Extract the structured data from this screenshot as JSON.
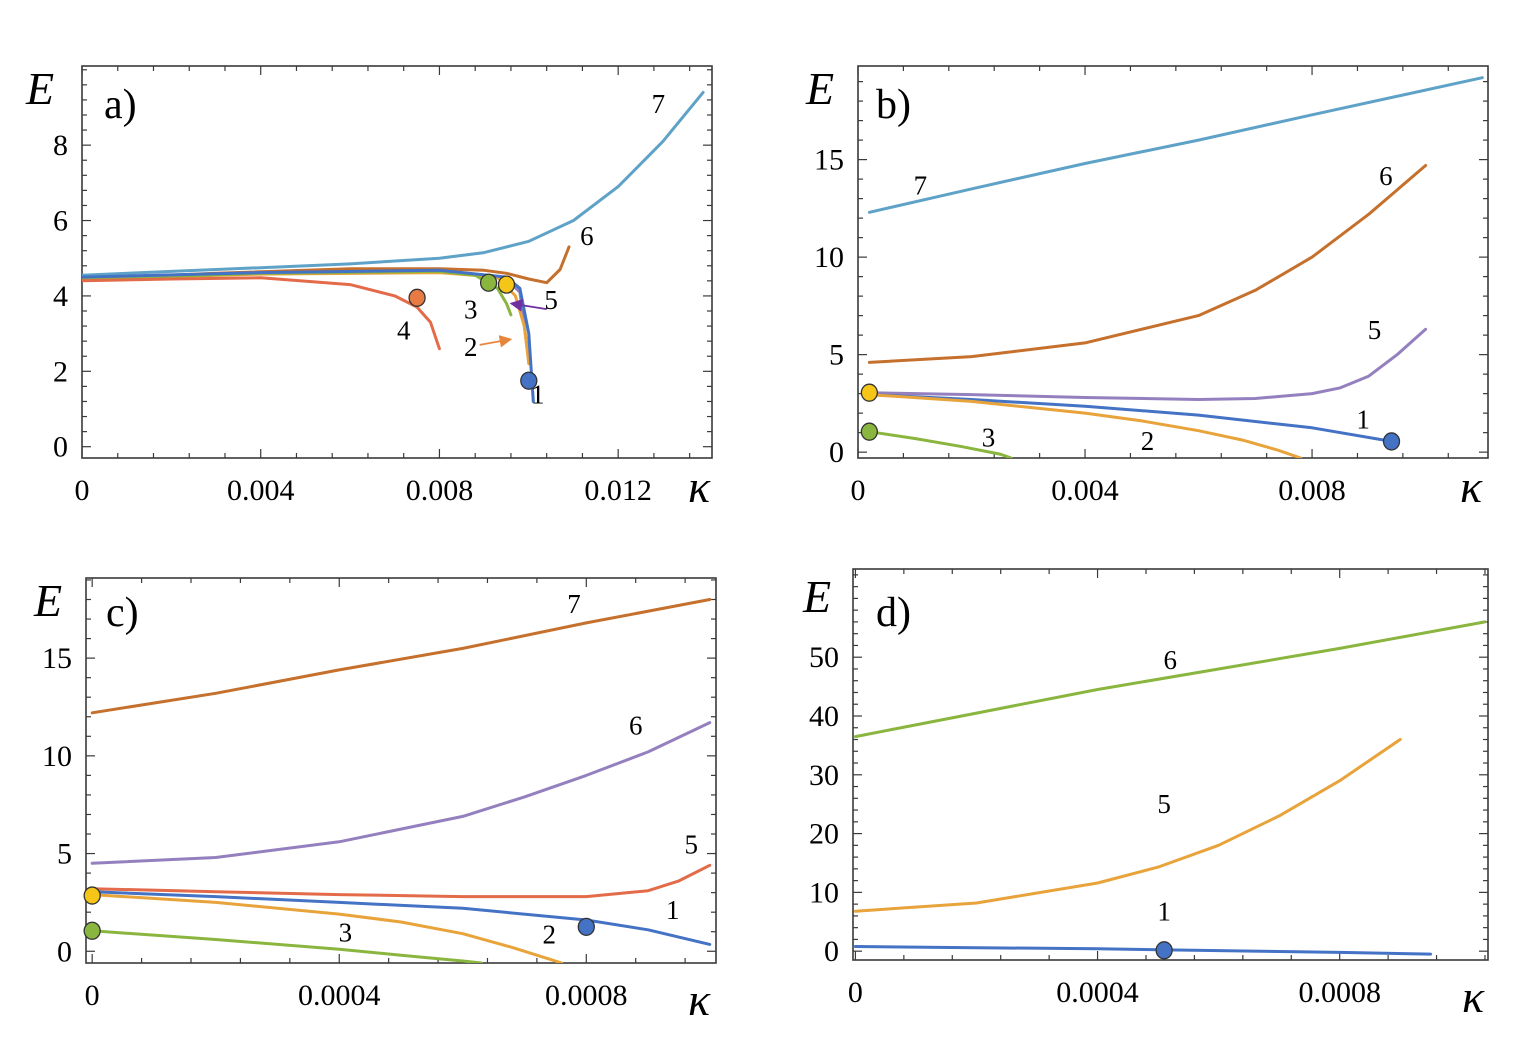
{
  "colors": {
    "blue": "#4472c4",
    "lightblue": "#5fa2c8",
    "orange": "#e8a33a",
    "green": "#8ab53f",
    "purple": "#9480bf",
    "brown": "#c5702c",
    "red": "#e36b4a",
    "yellow": "#f5c518",
    "orange_marker": "#e87b44"
  },
  "chart_data": [
    {
      "type": "line",
      "panel": "a)",
      "xlabel": "κ",
      "ylabel": "E",
      "xlim": [
        0,
        0.0141
      ],
      "ylim": [
        -0.3,
        10.1
      ],
      "x_ticks": [
        {
          "v": 0,
          "label": "0"
        },
        {
          "v": 0.004,
          "label": "0.004"
        },
        {
          "v": 0.008,
          "label": "0.008"
        },
        {
          "v": 0.012,
          "label": "0.012"
        }
      ],
      "y_ticks": [
        {
          "v": 0,
          "label": "0"
        },
        {
          "v": 2,
          "label": "2"
        },
        {
          "v": 4,
          "label": "4"
        },
        {
          "v": 6,
          "label": "6"
        },
        {
          "v": 8,
          "label": "8"
        }
      ],
      "series": [
        {
          "name": "7",
          "color": "lightblue",
          "x": [
            0,
            0.002,
            0.004,
            0.006,
            0.008,
            0.009,
            0.01,
            0.011,
            0.012,
            0.013,
            0.0139
          ],
          "y": [
            4.55,
            4.65,
            4.75,
            4.85,
            5.0,
            5.15,
            5.45,
            6.0,
            6.9,
            8.1,
            9.4
          ]
        },
        {
          "name": "6",
          "color": "brown",
          "x": [
            0,
            0.003,
            0.006,
            0.008,
            0.009,
            0.0095,
            0.01,
            0.0104,
            0.0107,
            0.0109
          ],
          "y": [
            4.45,
            4.6,
            4.72,
            4.72,
            4.68,
            4.6,
            4.45,
            4.35,
            4.7,
            5.3
          ]
        },
        {
          "name": "5",
          "color": "purple",
          "x": [
            0,
            0.004,
            0.008,
            0.0095,
            0.0098,
            0.0099,
            0.01
          ],
          "y": [
            4.48,
            4.6,
            4.68,
            4.45,
            4.1,
            3.2,
            2.3
          ]
        },
        {
          "name": "2",
          "color": "orange",
          "x": [
            0,
            0.004,
            0.008,
            0.0093,
            0.0097,
            0.0099,
            0.01
          ],
          "y": [
            4.45,
            4.58,
            4.62,
            4.5,
            4.0,
            3.2,
            2.2
          ]
        },
        {
          "name": "3",
          "color": "green",
          "x": [
            0,
            0.004,
            0.008,
            0.0088,
            0.0093,
            0.0095,
            0.0096
          ],
          "y": [
            4.45,
            4.6,
            4.65,
            4.55,
            4.2,
            3.8,
            3.5
          ]
        },
        {
          "name": "4",
          "color": "red",
          "x": [
            0,
            0.002,
            0.004,
            0.006,
            0.007,
            0.0075,
            0.0078,
            0.008
          ],
          "y": [
            4.4,
            4.45,
            4.48,
            4.3,
            4.0,
            3.7,
            3.3,
            2.6
          ]
        },
        {
          "name": "1",
          "color": "blue",
          "x": [
            0,
            0.004,
            0.008,
            0.0095,
            0.0098,
            0.01,
            0.0101
          ],
          "y": [
            4.5,
            4.62,
            4.68,
            4.5,
            4.2,
            3.0,
            1.2
          ]
        }
      ],
      "markers": [
        {
          "x": 0.0075,
          "y": 3.95,
          "color": "orange_marker"
        },
        {
          "x": 0.0091,
          "y": 4.35,
          "color": "green"
        },
        {
          "x": 0.0095,
          "y": 4.3,
          "color": "yellow"
        },
        {
          "x": 0.01,
          "y": 1.75,
          "color": "blue"
        }
      ],
      "labels": [
        {
          "text": "7",
          "x": 0.0129,
          "y": 8.85
        },
        {
          "text": "6",
          "x": 0.0113,
          "y": 5.35
        },
        {
          "text": "5",
          "x": 0.0105,
          "y": 3.65
        },
        {
          "text": "3",
          "x": 0.0087,
          "y": 3.4
        },
        {
          "text": "4",
          "x": 0.0072,
          "y": 2.85
        },
        {
          "text": "2",
          "x": 0.0087,
          "y": 2.4
        },
        {
          "text": "1",
          "x": 0.0102,
          "y": 1.15
        }
      ],
      "arrows": [
        {
          "x1": 0.0104,
          "y1": 3.65,
          "x2": 0.0096,
          "y2": 3.8,
          "color": "#7030a0"
        },
        {
          "x1": 0.0089,
          "y1": 2.7,
          "x2": 0.0096,
          "y2": 2.85,
          "color": "#e8853c"
        }
      ]
    },
    {
      "type": "line",
      "panel": "b)",
      "xlabel": "κ",
      "ylabel": "E",
      "xlim": [
        0,
        0.0111
      ],
      "ylim": [
        -0.3,
        19.8
      ],
      "x_ticks": [
        {
          "v": 0,
          "label": "0"
        },
        {
          "v": 0.004,
          "label": "0.004"
        },
        {
          "v": 0.008,
          "label": "0.008"
        }
      ],
      "y_ticks": [
        {
          "v": 0,
          "label": "0"
        },
        {
          "v": 5,
          "label": "5"
        },
        {
          "v": 10,
          "label": "10"
        },
        {
          "v": 15,
          "label": "15"
        }
      ],
      "series": [
        {
          "name": "7",
          "color": "lightblue",
          "x": [
            0.0002,
            0.002,
            0.004,
            0.006,
            0.008,
            0.011
          ],
          "y": [
            12.3,
            13.5,
            14.8,
            16.0,
            17.3,
            19.2
          ]
        },
        {
          "name": "6",
          "color": "brown",
          "x": [
            0.0002,
            0.002,
            0.004,
            0.006,
            0.007,
            0.008,
            0.009,
            0.01
          ],
          "y": [
            4.6,
            4.9,
            5.6,
            7.0,
            8.3,
            10.0,
            12.2,
            14.7
          ]
        },
        {
          "name": "5",
          "color": "purple",
          "x": [
            0.0002,
            0.002,
            0.004,
            0.006,
            0.007,
            0.008,
            0.0085,
            0.009,
            0.0095,
            0.01
          ],
          "y": [
            3.05,
            2.95,
            2.8,
            2.7,
            2.75,
            3.0,
            3.3,
            3.9,
            5.0,
            6.3
          ]
        },
        {
          "name": "1",
          "color": "blue",
          "x": [
            0.0002,
            0.002,
            0.004,
            0.006,
            0.008,
            0.0094
          ],
          "y": [
            2.95,
            2.7,
            2.35,
            1.9,
            1.25,
            0.55
          ]
        },
        {
          "name": "2",
          "color": "orange",
          "x": [
            0.0002,
            0.002,
            0.004,
            0.005,
            0.006,
            0.0068,
            0.0074,
            0.0078
          ],
          "y": [
            2.95,
            2.6,
            2.0,
            1.6,
            1.1,
            0.6,
            0.1,
            -0.3
          ]
        },
        {
          "name": "3",
          "color": "green",
          "x": [
            0.0002,
            0.001,
            0.0018,
            0.0025,
            0.0027
          ],
          "y": [
            1.05,
            0.7,
            0.3,
            -0.1,
            -0.3
          ]
        }
      ],
      "markers": [
        {
          "x": 0.0002,
          "y": 3.05,
          "color": "yellow"
        },
        {
          "x": 0.0002,
          "y": 1.05,
          "color": "green"
        },
        {
          "x": 0.0094,
          "y": 0.55,
          "color": "blue"
        }
      ],
      "labels": [
        {
          "text": "7",
          "x": 0.0011,
          "y": 13.2
        },
        {
          "text": "6",
          "x": 0.0093,
          "y": 13.7
        },
        {
          "text": "5",
          "x": 0.0091,
          "y": 5.8
        },
        {
          "text": "1",
          "x": 0.0089,
          "y": 1.2
        },
        {
          "text": "2",
          "x": 0.0051,
          "y": 0.1
        },
        {
          "text": "3",
          "x": 0.0023,
          "y": 0.3
        }
      ],
      "arrows": []
    },
    {
      "type": "line",
      "panel": "c)",
      "xlabel": "κ",
      "ylabel": "E",
      "xlim": [
        -1e-05,
        0.00101
      ],
      "ylim": [
        -0.6,
        19.1
      ],
      "x_ticks": [
        {
          "v": 0,
          "label": "0"
        },
        {
          "v": 0.0004,
          "label": "0.0004"
        },
        {
          "v": 0.0008,
          "label": "0.0008"
        }
      ],
      "y_ticks": [
        {
          "v": 0,
          "label": "0"
        },
        {
          "v": 5,
          "label": "5"
        },
        {
          "v": 10,
          "label": "10"
        },
        {
          "v": 15,
          "label": "15"
        }
      ],
      "series": [
        {
          "name": "7",
          "color": "brown",
          "x": [
            0,
            0.0002,
            0.0004,
            0.0006,
            0.0008,
            0.001
          ],
          "y": [
            12.2,
            13.2,
            14.4,
            15.5,
            16.8,
            18.0
          ]
        },
        {
          "name": "6",
          "color": "purple",
          "x": [
            0,
            0.0002,
            0.0004,
            0.0006,
            0.0007,
            0.0008,
            0.0009,
            0.001
          ],
          "y": [
            4.5,
            4.8,
            5.6,
            6.9,
            7.9,
            9.0,
            10.2,
            11.7
          ]
        },
        {
          "name": "5",
          "color": "red",
          "x": [
            0,
            0.0002,
            0.0004,
            0.0006,
            0.0008,
            0.0009,
            0.00095,
            0.001
          ],
          "y": [
            3.2,
            3.05,
            2.9,
            2.8,
            2.8,
            3.1,
            3.6,
            4.4
          ]
        },
        {
          "name": "1",
          "color": "blue",
          "x": [
            0,
            0.0002,
            0.0004,
            0.0006,
            0.0008,
            0.0009,
            0.001
          ],
          "y": [
            3.05,
            2.8,
            2.5,
            2.2,
            1.6,
            1.1,
            0.35
          ]
        },
        {
          "name": "2",
          "color": "orange",
          "x": [
            0,
            0.0002,
            0.0004,
            0.0005,
            0.0006,
            0.00068,
            0.00074,
            0.00076
          ],
          "y": [
            2.9,
            2.5,
            1.9,
            1.5,
            0.9,
            0.2,
            -0.4,
            -0.6
          ]
        },
        {
          "name": "3",
          "color": "green",
          "x": [
            0,
            0.0002,
            0.0004,
            0.0005,
            0.0006,
            0.00063
          ],
          "y": [
            1.05,
            0.6,
            0.1,
            -0.2,
            -0.5,
            -0.6
          ]
        }
      ],
      "markers": [
        {
          "x": 0,
          "y": 2.85,
          "color": "yellow"
        },
        {
          "x": 0,
          "y": 1.05,
          "color": "green"
        },
        {
          "x": 0.0008,
          "y": 1.25,
          "color": "blue"
        }
      ],
      "labels": [
        {
          "text": "7",
          "x": 0.00078,
          "y": 17.3
        },
        {
          "text": "6",
          "x": 0.00088,
          "y": 11.1
        },
        {
          "text": "5",
          "x": 0.00097,
          "y": 5.0
        },
        {
          "text": "1",
          "x": 0.00094,
          "y": 1.65
        },
        {
          "text": "2",
          "x": 0.00074,
          "y": 0.4
        },
        {
          "text": "3",
          "x": 0.00041,
          "y": 0.5
        }
      ],
      "arrows": []
    },
    {
      "type": "line",
      "panel": "d)",
      "xlabel": "κ",
      "ylabel": "E",
      "xlim": [
        -4e-06,
        0.001045
      ],
      "ylim": [
        -1.5,
        65.0
      ],
      "x_ticks": [
        {
          "v": 0,
          "label": "0"
        },
        {
          "v": 0.0004,
          "label": "0.0004"
        },
        {
          "v": 0.0008,
          "label": "0.0008"
        }
      ],
      "y_ticks": [
        {
          "v": 0,
          "label": "0"
        },
        {
          "v": 10,
          "label": "10"
        },
        {
          "v": 20,
          "label": "20"
        },
        {
          "v": 30,
          "label": "30"
        },
        {
          "v": 40,
          "label": "40"
        },
        {
          "v": 50,
          "label": "50"
        }
      ],
      "series": [
        {
          "name": "6",
          "color": "green",
          "x": [
            0,
            0.0002,
            0.0004,
            0.0006,
            0.0008,
            0.00104
          ],
          "y": [
            36.5,
            40.5,
            44.5,
            48.0,
            51.5,
            56.0
          ]
        },
        {
          "name": "5",
          "color": "orange",
          "x": [
            0,
            0.0002,
            0.0004,
            0.0005,
            0.0006,
            0.0007,
            0.0008,
            0.0009
          ],
          "y": [
            6.8,
            8.2,
            11.6,
            14.3,
            18.0,
            23.0,
            29.0,
            36.0
          ]
        },
        {
          "name": "1",
          "color": "blue",
          "x": [
            0,
            0.0002,
            0.0004,
            0.0006,
            0.0008,
            0.00095
          ],
          "y": [
            0.8,
            0.6,
            0.4,
            0.1,
            -0.2,
            -0.5
          ]
        }
      ],
      "markers": [
        {
          "x": 0.00051,
          "y": 0.15,
          "color": "blue"
        }
      ],
      "labels": [
        {
          "text": "6",
          "x": 0.00052,
          "y": 48.0
        },
        {
          "text": "5",
          "x": 0.00051,
          "y": 23.5
        },
        {
          "text": "1",
          "x": 0.00051,
          "y": 5.2
        }
      ],
      "arrows": []
    }
  ]
}
